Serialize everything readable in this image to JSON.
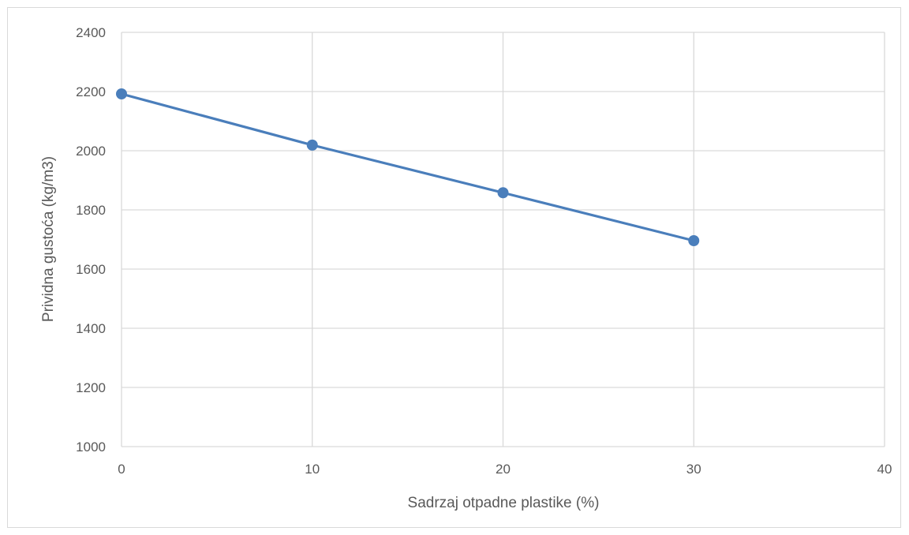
{
  "chart_data": {
    "type": "line",
    "title": "",
    "xlabel": "Sadrzaj otpadne plastike (%)",
    "ylabel": "Prividna gustoća (kg/m3)",
    "xlim": [
      0,
      40
    ],
    "ylim": [
      1000,
      2400
    ],
    "xticks": [
      0,
      10,
      20,
      30,
      40
    ],
    "yticks": [
      1000,
      1200,
      1400,
      1600,
      1800,
      2000,
      2200,
      2400
    ],
    "grid": true,
    "legend": "none",
    "series": [
      {
        "x": [
          0,
          10,
          20,
          30
        ],
        "y": [
          2192,
          2019,
          1858,
          1696
        ],
        "color": "#4a7ebb",
        "marker": "circle"
      }
    ]
  }
}
